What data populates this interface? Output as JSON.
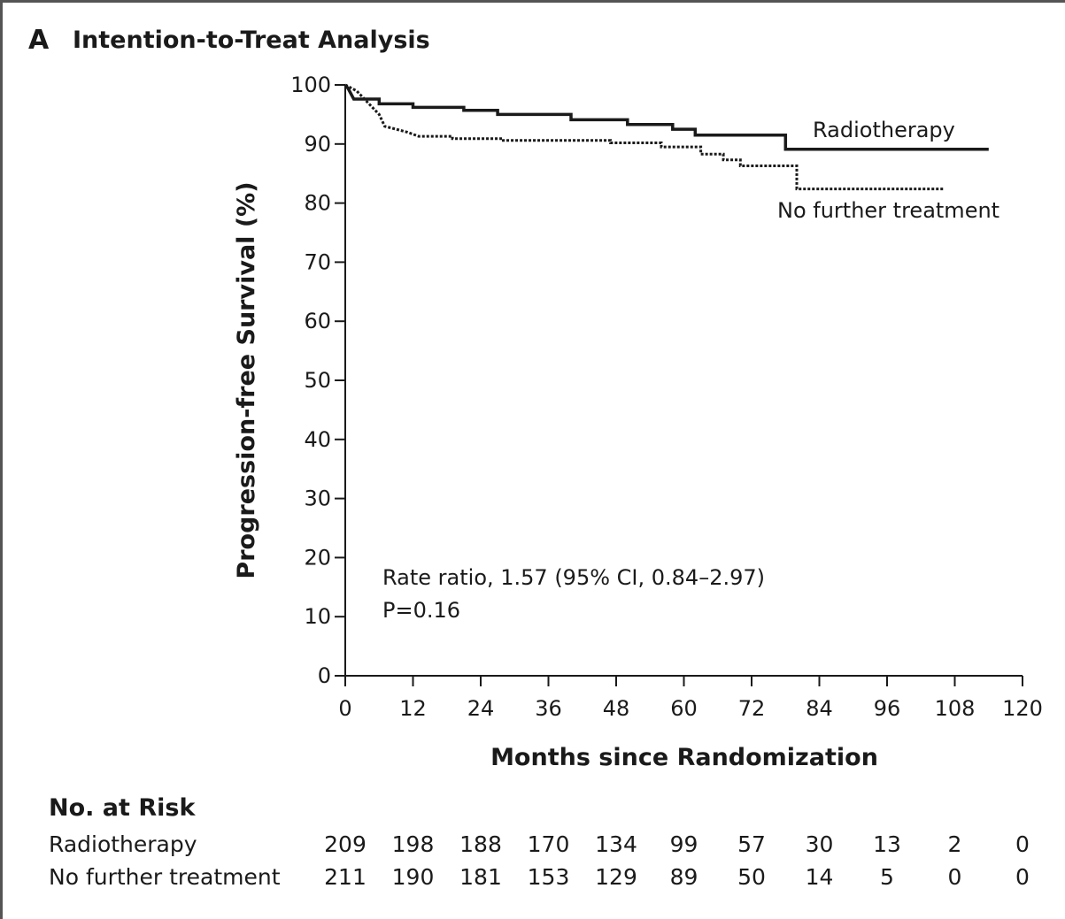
{
  "panel": {
    "letter": "A",
    "title": "Intention-to-Treat Analysis"
  },
  "chart_data": {
    "type": "line",
    "title": "Intention-to-Treat Analysis",
    "xlabel": "Months since Randomization",
    "ylabel": "Progression-free Survival (%)",
    "xlim": [
      0,
      120
    ],
    "ylim": [
      0,
      100
    ],
    "x_ticks": [
      0,
      12,
      24,
      36,
      48,
      60,
      72,
      84,
      96,
      108,
      120
    ],
    "y_ticks": [
      0,
      10,
      20,
      30,
      40,
      50,
      60,
      70,
      80,
      90,
      100
    ],
    "grid": false,
    "series": [
      {
        "name": "Radiotherapy",
        "style": "solid",
        "color": "#1a1a1a",
        "points": [
          [
            0,
            100
          ],
          [
            0.5,
            99.4
          ],
          [
            1.5,
            97.6
          ],
          [
            6,
            97.6
          ],
          [
            6,
            96.8
          ],
          [
            12,
            96.8
          ],
          [
            12,
            96.2
          ],
          [
            21,
            96.2
          ],
          [
            21,
            95.7
          ],
          [
            27,
            95.7
          ],
          [
            27,
            95
          ],
          [
            40,
            95
          ],
          [
            40,
            94.1
          ],
          [
            50,
            94.1
          ],
          [
            50,
            93.3
          ],
          [
            58,
            93.3
          ],
          [
            58,
            92.5
          ],
          [
            62,
            92.5
          ],
          [
            62,
            91.5
          ],
          [
            78,
            91.5
          ],
          [
            78,
            89.1
          ],
          [
            114,
            89.1
          ]
        ]
      },
      {
        "name": "No further treatment",
        "style": "dotted",
        "color": "#1a1a1a",
        "points": [
          [
            0,
            100
          ],
          [
            2,
            99
          ],
          [
            4,
            97
          ],
          [
            6,
            95
          ],
          [
            7,
            93
          ],
          [
            9,
            92.5
          ],
          [
            11,
            92
          ],
          [
            13,
            91.3
          ],
          [
            19,
            91.3
          ],
          [
            19,
            90.9
          ],
          [
            28,
            90.9
          ],
          [
            28,
            90.6
          ],
          [
            47,
            90.6
          ],
          [
            47,
            90.2
          ],
          [
            56,
            90.2
          ],
          [
            56,
            89.5
          ],
          [
            63,
            89.5
          ],
          [
            63,
            88.3
          ],
          [
            67,
            88.3
          ],
          [
            67,
            87.3
          ],
          [
            70,
            87.3
          ],
          [
            70,
            86.3
          ],
          [
            80,
            86.3
          ],
          [
            80,
            82.4
          ],
          [
            106,
            82.4
          ]
        ]
      }
    ],
    "annotations": [
      "Rate ratio, 1.57 (95% CI, 0.84–2.97)",
      "P=0.16"
    ]
  },
  "risk_table": {
    "title": "No. at Risk",
    "times": [
      0,
      12,
      24,
      36,
      48,
      60,
      72,
      84,
      96,
      108,
      120
    ],
    "rows": [
      {
        "label": "Radiotherapy",
        "values": [
          "209",
          "198",
          "188",
          "170",
          "134",
          "99",
          "57",
          "30",
          "13",
          "2",
          "0"
        ]
      },
      {
        "label": "No further treatment",
        "values": [
          "211",
          "190",
          "181",
          "153",
          "129",
          "89",
          "50",
          "14",
          "5",
          "0",
          "0"
        ]
      }
    ]
  }
}
